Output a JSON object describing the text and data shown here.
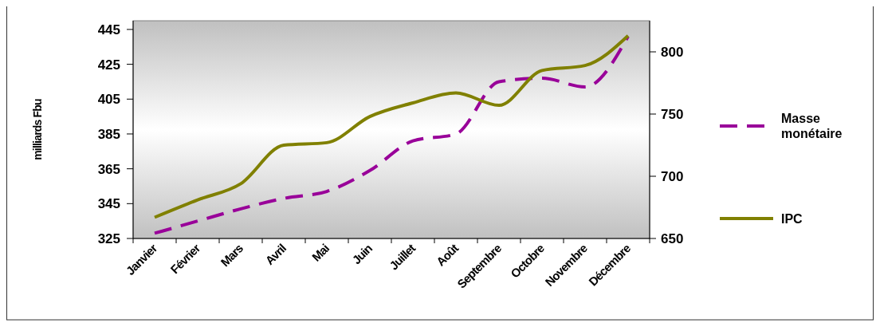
{
  "chart_data": {
    "type": "line",
    "ylabel": "milliards Fbu",
    "categories": [
      "Janvier",
      "Février",
      "Mars",
      "Avril",
      "Mai",
      "Juin",
      "Juillet",
      "Août",
      "Septembre",
      "Octobre",
      "Novembre",
      "Décembre"
    ],
    "series": [
      {
        "name": "Masse monétaire",
        "color": "#990099",
        "line_style": "dashed",
        "values": [
          328,
          335,
          342,
          348,
          352,
          364,
          381,
          385,
          415,
          417,
          412,
          441
        ]
      },
      {
        "name": "IPC",
        "color": "#808000",
        "line_style": "solid",
        "axis": "y2",
        "values": [
          667,
          681,
          694,
          725,
          727,
          748,
          759,
          767,
          757,
          785,
          789,
          813
        ]
      }
    ],
    "ylim": [
      325,
      450
    ],
    "yticks": [
      325,
      345,
      365,
      385,
      405,
      425,
      445
    ],
    "y2lim": [
      650,
      825
    ],
    "y2ticks": [
      650,
      700,
      750,
      800
    ],
    "grid": false,
    "legend": "right",
    "marker": "none"
  }
}
